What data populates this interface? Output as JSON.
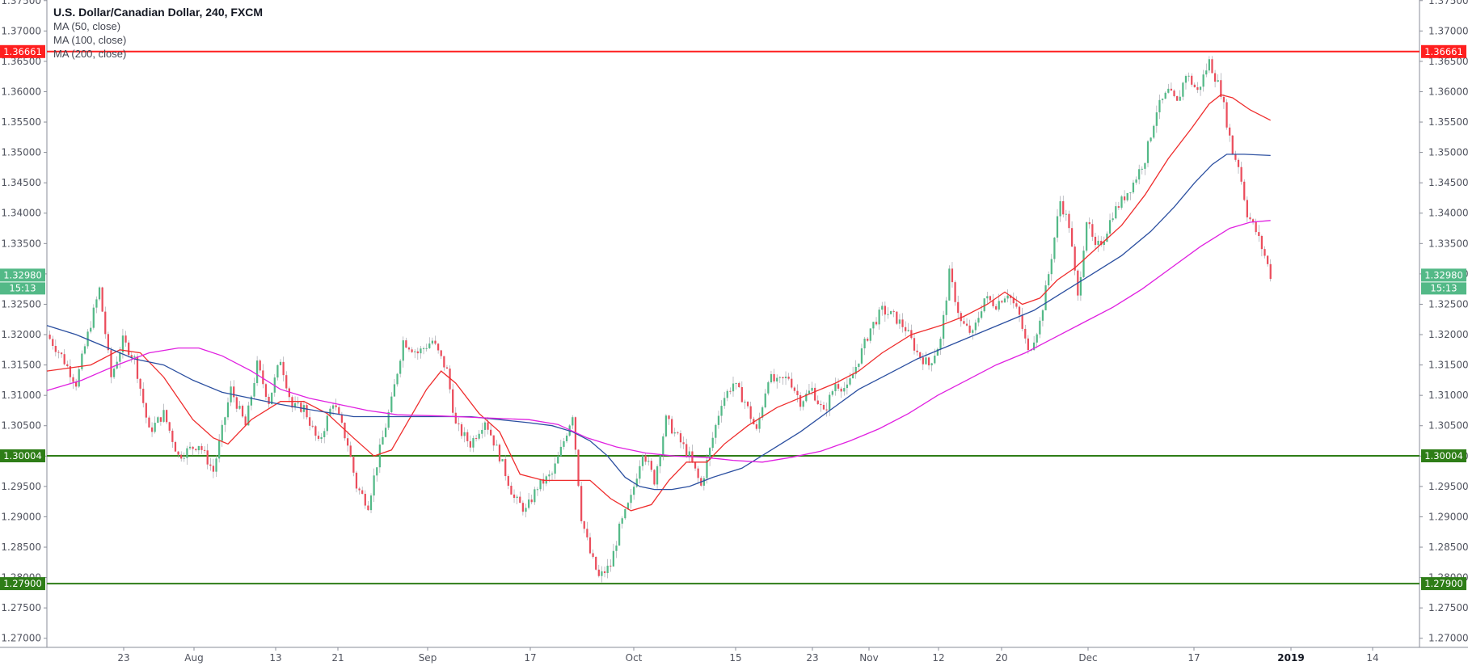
{
  "legend": {
    "title": "U.S. Dollar/Canadian Dollar, 240, FXCM",
    "ma": [
      "MA (50, close)",
      "MA (100, close)",
      "MA (200, close)"
    ]
  },
  "chart_data": {
    "type": "line",
    "title": "U.S. Dollar/Canadian Dollar, 240, FXCM",
    "ylim": [
      1.2685,
      1.3751
    ],
    "y_ticks": [
      "1.27000",
      "1.27500",
      "1.28000",
      "1.28500",
      "1.29000",
      "1.29500",
      "1.30000",
      "1.30500",
      "1.31000",
      "1.31500",
      "1.32000",
      "1.32500",
      "1.33000",
      "1.33500",
      "1.34000",
      "1.34500",
      "1.35000",
      "1.35500",
      "1.36000",
      "1.36500",
      "1.37000",
      "1.37500"
    ],
    "x_ticks": [
      "23",
      "Aug",
      "13",
      "21",
      "Sep",
      "17",
      "Oct",
      "15",
      "23",
      "Nov",
      "12",
      "20",
      "Dec",
      "17",
      "2019",
      "14"
    ],
    "x_ticks_bold": [
      "2019"
    ],
    "horizontal_levels": [
      {
        "value": 1.36661,
        "label": "1.36661",
        "color": "#ff1f1f"
      },
      {
        "value": 1.30004,
        "label": "1.30004",
        "color": "#2e7d17"
      },
      {
        "value": 1.279,
        "label": "1.27900",
        "color": "#2e7d17"
      }
    ],
    "last_price": {
      "value": 1.3298,
      "label": "1.32980",
      "countdown": "15:13",
      "color": "#53b987"
    },
    "candle_colors": {
      "up": "#53b987",
      "down": "#eb4d5c"
    },
    "price_path": [
      [
        0,
        1.32
      ],
      [
        5,
        1.3165
      ],
      [
        10,
        1.312
      ],
      [
        14,
        1.32
      ],
      [
        18,
        1.3275
      ],
      [
        22,
        1.313
      ],
      [
        26,
        1.319
      ],
      [
        30,
        1.316
      ],
      [
        35,
        1.304
      ],
      [
        40,
        1.307
      ],
      [
        45,
        1.3
      ],
      [
        52,
        1.302
      ],
      [
        57,
        1.2975
      ],
      [
        63,
        1.311
      ],
      [
        68,
        1.305
      ],
      [
        72,
        1.315
      ],
      [
        76,
        1.309
      ],
      [
        80,
        1.316
      ],
      [
        84,
        1.308
      ],
      [
        88,
        1.308
      ],
      [
        93,
        1.302
      ],
      [
        98,
        1.309
      ],
      [
        103,
        1.302
      ],
      [
        106,
        1.295
      ],
      [
        110,
        1.292
      ],
      [
        114,
        1.301
      ],
      [
        118,
        1.309
      ],
      [
        122,
        1.319
      ],
      [
        127,
        1.317
      ],
      [
        132,
        1.319
      ],
      [
        137,
        1.314
      ],
      [
        140,
        1.305
      ],
      [
        145,
        1.302
      ],
      [
        150,
        1.306
      ],
      [
        155,
        1.3
      ],
      [
        160,
        1.293
      ],
      [
        164,
        1.291
      ],
      [
        168,
        1.295
      ],
      [
        173,
        1.297
      ],
      [
        176,
        1.301
      ],
      [
        180,
        1.307
      ],
      [
        183,
        1.29
      ],
      [
        186,
        1.284
      ],
      [
        189,
        1.28
      ],
      [
        193,
        1.282
      ],
      [
        196,
        1.288
      ],
      [
        200,
        1.293
      ],
      [
        204,
        1.301
      ],
      [
        208,
        1.296
      ],
      [
        212,
        1.306
      ],
      [
        216,
        1.303
      ],
      [
        220,
        1.3
      ],
      [
        224,
        1.295
      ],
      [
        227,
        1.301
      ],
      [
        231,
        1.309
      ],
      [
        235,
        1.312
      ],
      [
        239,
        1.309
      ],
      [
        243,
        1.304
      ],
      [
        247,
        1.313
      ],
      [
        250,
        1.312
      ],
      [
        254,
        1.313
      ],
      [
        258,
        1.309
      ],
      [
        262,
        1.311
      ],
      [
        266,
        1.307
      ],
      [
        270,
        1.312
      ],
      [
        274,
        1.311
      ],
      [
        278,
        1.316
      ],
      [
        282,
        1.321
      ],
      [
        286,
        1.324
      ],
      [
        290,
        1.323
      ],
      [
        294,
        1.321
      ],
      [
        298,
        1.317
      ],
      [
        302,
        1.315
      ],
      [
        306,
        1.319
      ],
      [
        309,
        1.33
      ],
      [
        313,
        1.322
      ],
      [
        317,
        1.32
      ],
      [
        321,
        1.326
      ],
      [
        325,
        1.325
      ],
      [
        329,
        1.327
      ],
      [
        333,
        1.323
      ],
      [
        336,
        1.317
      ],
      [
        340,
        1.322
      ],
      [
        343,
        1.33
      ],
      [
        347,
        1.342
      ],
      [
        350,
        1.338
      ],
      [
        353,
        1.326
      ],
      [
        356,
        1.339
      ],
      [
        359,
        1.334
      ],
      [
        362,
        1.336
      ],
      [
        365,
        1.34
      ],
      [
        368,
        1.342
      ],
      [
        372,
        1.345
      ],
      [
        376,
        1.349
      ],
      [
        380,
        1.357
      ],
      [
        384,
        1.36
      ],
      [
        387,
        1.358
      ],
      [
        390,
        1.363
      ],
      [
        394,
        1.36
      ],
      [
        398,
        1.365
      ],
      [
        402,
        1.36
      ],
      [
        404,
        1.355
      ],
      [
        406,
        1.35
      ],
      [
        408,
        1.348
      ],
      [
        411,
        1.34
      ],
      [
        414,
        1.337
      ],
      [
        417,
        1.333
      ],
      [
        419,
        1.3298
      ]
    ],
    "series": [
      {
        "name": "MA (50, close)",
        "color": "#ef2d2d",
        "points": [
          [
            0,
            1.314
          ],
          [
            15,
            1.315
          ],
          [
            25,
            1.3175
          ],
          [
            32,
            1.317
          ],
          [
            40,
            1.313
          ],
          [
            50,
            1.306
          ],
          [
            57,
            1.303
          ],
          [
            62,
            1.302
          ],
          [
            70,
            1.306
          ],
          [
            80,
            1.309
          ],
          [
            88,
            1.309
          ],
          [
            96,
            1.307
          ],
          [
            105,
            1.303
          ],
          [
            112,
            1.3
          ],
          [
            118,
            1.301
          ],
          [
            124,
            1.306
          ],
          [
            130,
            1.311
          ],
          [
            135,
            1.314
          ],
          [
            140,
            1.312
          ],
          [
            148,
            1.307
          ],
          [
            155,
            1.304
          ],
          [
            162,
            1.297
          ],
          [
            170,
            1.296
          ],
          [
            180,
            1.296
          ],
          [
            186,
            1.296
          ],
          [
            193,
            1.293
          ],
          [
            200,
            1.291
          ],
          [
            207,
            1.292
          ],
          [
            213,
            1.296
          ],
          [
            219,
            1.299
          ],
          [
            226,
            1.299
          ],
          [
            232,
            1.302
          ],
          [
            240,
            1.305
          ],
          [
            250,
            1.308
          ],
          [
            260,
            1.31
          ],
          [
            270,
            1.312
          ],
          [
            278,
            1.314
          ],
          [
            286,
            1.317
          ],
          [
            296,
            1.32
          ],
          [
            306,
            1.3215
          ],
          [
            314,
            1.323
          ],
          [
            322,
            1.325
          ],
          [
            328,
            1.327
          ],
          [
            334,
            1.325
          ],
          [
            340,
            1.326
          ],
          [
            346,
            1.329
          ],
          [
            352,
            1.331
          ],
          [
            360,
            1.3345
          ],
          [
            368,
            1.338
          ],
          [
            376,
            1.343
          ],
          [
            384,
            1.349
          ],
          [
            392,
            1.354
          ],
          [
            398,
            1.358
          ],
          [
            402,
            1.3595
          ],
          [
            406,
            1.359
          ],
          [
            412,
            1.357
          ],
          [
            419,
            1.3553
          ]
        ]
      },
      {
        "name": "MA (100, close)",
        "color": "#2b4fa0",
        "points": [
          [
            0,
            1.3215
          ],
          [
            10,
            1.32
          ],
          [
            20,
            1.318
          ],
          [
            30,
            1.316
          ],
          [
            40,
            1.315
          ],
          [
            50,
            1.3125
          ],
          [
            60,
            1.3105
          ],
          [
            70,
            1.3095
          ],
          [
            80,
            1.3085
          ],
          [
            92,
            1.3075
          ],
          [
            105,
            1.3065
          ],
          [
            115,
            1.3065
          ],
          [
            125,
            1.3065
          ],
          [
            135,
            1.3065
          ],
          [
            145,
            1.3065
          ],
          [
            155,
            1.306
          ],
          [
            165,
            1.3055
          ],
          [
            173,
            1.305
          ],
          [
            180,
            1.304
          ],
          [
            186,
            1.3025
          ],
          [
            192,
            1.3
          ],
          [
            198,
            1.2965
          ],
          [
            203,
            1.295
          ],
          [
            208,
            1.2945
          ],
          [
            214,
            1.2945
          ],
          [
            220,
            1.295
          ],
          [
            228,
            1.2965
          ],
          [
            238,
            1.298
          ],
          [
            248,
            1.301
          ],
          [
            258,
            1.304
          ],
          [
            268,
            1.3075
          ],
          [
            278,
            1.311
          ],
          [
            288,
            1.3135
          ],
          [
            298,
            1.316
          ],
          [
            308,
            1.318
          ],
          [
            318,
            1.32
          ],
          [
            328,
            1.322
          ],
          [
            338,
            1.324
          ],
          [
            348,
            1.327
          ],
          [
            358,
            1.33
          ],
          [
            368,
            1.333
          ],
          [
            378,
            1.337
          ],
          [
            386,
            1.341
          ],
          [
            393,
            1.345
          ],
          [
            399,
            1.348
          ],
          [
            404,
            1.3497
          ],
          [
            410,
            1.3497
          ],
          [
            419,
            1.3495
          ]
        ]
      },
      {
        "name": "MA (200, close)",
        "color": "#e020e0",
        "points": [
          [
            0,
            1.3108
          ],
          [
            12,
            1.3125
          ],
          [
            24,
            1.315
          ],
          [
            35,
            1.317
          ],
          [
            45,
            1.3178
          ],
          [
            52,
            1.3178
          ],
          [
            60,
            1.3165
          ],
          [
            70,
            1.314
          ],
          [
            80,
            1.311
          ],
          [
            90,
            1.3095
          ],
          [
            100,
            1.3085
          ],
          [
            110,
            1.3075
          ],
          [
            120,
            1.3068
          ],
          [
            135,
            1.3066
          ],
          [
            150,
            1.3063
          ],
          [
            165,
            1.306
          ],
          [
            175,
            1.3052
          ],
          [
            185,
            1.303
          ],
          [
            195,
            1.3015
          ],
          [
            205,
            1.3005
          ],
          [
            215,
            1.3
          ],
          [
            225,
            1.2998
          ],
          [
            235,
            1.2993
          ],
          [
            245,
            1.299
          ],
          [
            255,
            1.2998
          ],
          [
            265,
            1.3008
          ],
          [
            275,
            1.3025
          ],
          [
            285,
            1.3045
          ],
          [
            295,
            1.307
          ],
          [
            305,
            1.31
          ],
          [
            315,
            1.3125
          ],
          [
            325,
            1.315
          ],
          [
            335,
            1.317
          ],
          [
            345,
            1.3195
          ],
          [
            355,
            1.322
          ],
          [
            365,
            1.3245
          ],
          [
            375,
            1.3275
          ],
          [
            385,
            1.331
          ],
          [
            395,
            1.3345
          ],
          [
            405,
            1.3375
          ],
          [
            412,
            1.3385
          ],
          [
            419,
            1.3388
          ]
        ]
      }
    ],
    "grid": false,
    "legend_placement": "top-left"
  }
}
